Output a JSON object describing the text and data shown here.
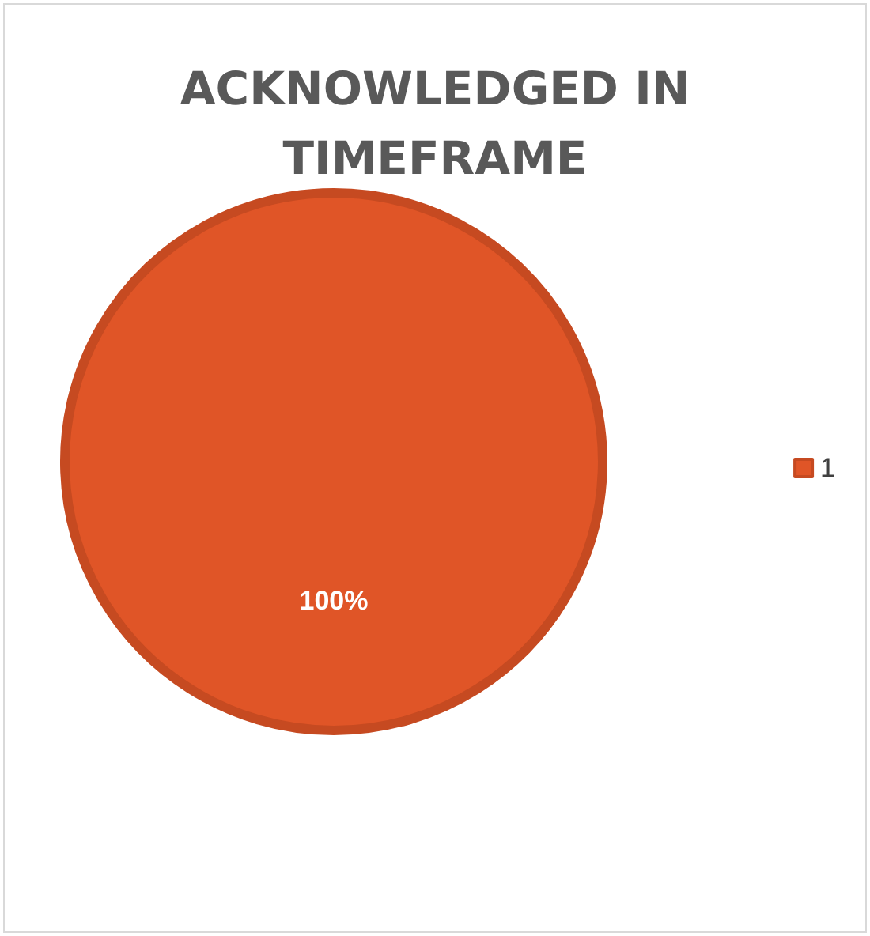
{
  "chart_data": {
    "type": "pie",
    "title": "ACKNOWLEDGED IN\nTIMEFRAME",
    "categories": [
      "1"
    ],
    "values": [
      100
    ],
    "colors": [
      "#e05527"
    ],
    "value_labels": [
      "100%"
    ],
    "legend": "right"
  }
}
